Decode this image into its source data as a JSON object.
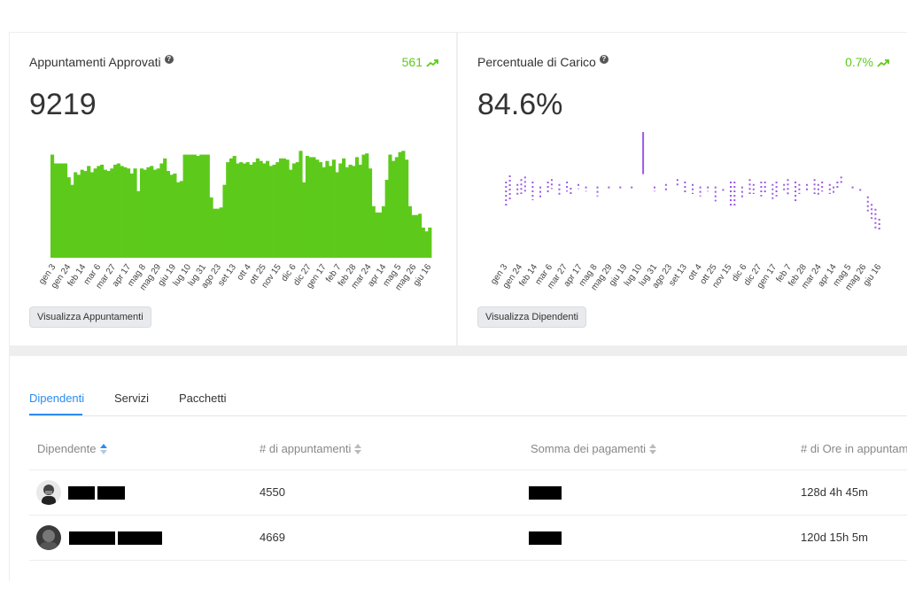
{
  "cards": [
    {
      "title": "Appuntamenti Approvati",
      "help": "?",
      "delta": "561",
      "value": "9219",
      "button": "Visualizza Appuntamenti",
      "accent": "#5dca1b",
      "chart_data": {
        "type": "bar",
        "x_ticks": [
          "gen 3",
          "gen 24",
          "feb 14",
          "mar 6",
          "mar 27",
          "apr 17",
          "mag 8",
          "mag 29",
          "giu 19",
          "lug 10",
          "lug 31",
          "ago 23",
          "set 13",
          "ott 4",
          "ott 25",
          "nov 15",
          "dic 6",
          "dic 27",
          "gen 17",
          "feb 7",
          "feb 28",
          "mar 24",
          "apr 14",
          "mag 5",
          "mag 26",
          "giu 16"
        ],
        "values": [
          82,
          75,
          75,
          75,
          75,
          64,
          58,
          68,
          66,
          70,
          69,
          73,
          68,
          71,
          73,
          74,
          70,
          69,
          71,
          74,
          75,
          73,
          72,
          71,
          67,
          71,
          53,
          71,
          70,
          72,
          73,
          70,
          71,
          75,
          79,
          69,
          66,
          67,
          60,
          61,
          82,
          82,
          82,
          82,
          81,
          82,
          82,
          82,
          48,
          39,
          39,
          40,
          58,
          76,
          79,
          81,
          75,
          76,
          75,
          76,
          74,
          76,
          79,
          77,
          75,
          77,
          73,
          74,
          76,
          79,
          79,
          78,
          70,
          75,
          76,
          85,
          60,
          81,
          80,
          80,
          78,
          76,
          72,
          77,
          73,
          78,
          68,
          75,
          79,
          72,
          74,
          73,
          80,
          74,
          82,
          83,
          71,
          41,
          36,
          36,
          41,
          62,
          82,
          77,
          80,
          84,
          85,
          78,
          41,
          34,
          34,
          35,
          24,
          21,
          24
        ],
        "ylim": [
          0,
          100
        ]
      }
    },
    {
      "title": "Percentuale di Carico",
      "help": "?",
      "delta": "0.7%",
      "value": "84.6%",
      "button": "Visualizza Dipendenti",
      "accent": "#9b59e6",
      "chart_data": {
        "type": "scatter",
        "x_ticks": [
          "gen 3",
          "gen 24",
          "feb 14",
          "mar 6",
          "mar 27",
          "apr 17",
          "mag 8",
          "mag 29",
          "giu 19",
          "lug 10",
          "lug 31",
          "ago 23",
          "set 13",
          "ott 4",
          "ott 25",
          "nov 15",
          "dic 6",
          "dic 27",
          "gen 17",
          "feb 7",
          "feb 28",
          "mar 24",
          "apr 14",
          "mag 5",
          "mag 26",
          "giu 16"
        ],
        "segments": [
          [
            0.01,
            40,
            60
          ],
          [
            0.02,
            35,
            55
          ],
          [
            0.04,
            42,
            52
          ],
          [
            0.05,
            38,
            50
          ],
          [
            0.06,
            36,
            48
          ],
          [
            0.08,
            40,
            55
          ],
          [
            0.1,
            44,
            54
          ],
          [
            0.12,
            40,
            50
          ],
          [
            0.13,
            38,
            46
          ],
          [
            0.15,
            42,
            52
          ],
          [
            0.17,
            40,
            48
          ],
          [
            0.18,
            45,
            50
          ],
          [
            0.2,
            42,
            46
          ],
          [
            0.22,
            44,
            48
          ],
          [
            0.25,
            44,
            52
          ],
          [
            0.28,
            44,
            46
          ],
          [
            0.31,
            44,
            46
          ],
          [
            0.34,
            44,
            46
          ],
          [
            0.37,
            0,
            34
          ],
          [
            0.4,
            44,
            48
          ],
          [
            0.43,
            42,
            48
          ],
          [
            0.46,
            38,
            44
          ],
          [
            0.48,
            40,
            50
          ],
          [
            0.5,
            42,
            50
          ],
          [
            0.52,
            44,
            52
          ],
          [
            0.54,
            44,
            48
          ],
          [
            0.56,
            44,
            56
          ],
          [
            0.58,
            46,
            48
          ],
          [
            0.6,
            40,
            60
          ],
          [
            0.61,
            40,
            60
          ],
          [
            0.63,
            44,
            54
          ],
          [
            0.65,
            38,
            50
          ],
          [
            0.66,
            42,
            50
          ],
          [
            0.68,
            40,
            52
          ],
          [
            0.69,
            40,
            50
          ],
          [
            0.71,
            42,
            54
          ],
          [
            0.72,
            40,
            52
          ],
          [
            0.74,
            42,
            48
          ],
          [
            0.75,
            38,
            52
          ],
          [
            0.77,
            40,
            56
          ],
          [
            0.78,
            42,
            50
          ],
          [
            0.8,
            42,
            48
          ],
          [
            0.82,
            38,
            50
          ],
          [
            0.83,
            42,
            52
          ],
          [
            0.84,
            40,
            48
          ],
          [
            0.86,
            42,
            50
          ],
          [
            0.87,
            44,
            50
          ],
          [
            0.88,
            40,
            46
          ],
          [
            0.89,
            36,
            42
          ],
          [
            0.92,
            44,
            46
          ],
          [
            0.94,
            46,
            48
          ],
          [
            0.96,
            52,
            64
          ],
          [
            0.97,
            58,
            70
          ],
          [
            0.98,
            62,
            78
          ],
          [
            0.99,
            70,
            80
          ]
        ]
      }
    }
  ],
  "tabs": [
    "Dipendenti",
    "Servizi",
    "Pacchetti"
  ],
  "table": {
    "columns": [
      "Dipendente",
      "# di appuntamenti",
      "Somma dei pagamenti",
      "# di Ore in appuntamento"
    ],
    "rows": [
      {
        "appointments": "4550",
        "hours": "128d 4h 45m"
      },
      {
        "appointments": "4669",
        "hours": "120d 15h 5m"
      }
    ]
  }
}
